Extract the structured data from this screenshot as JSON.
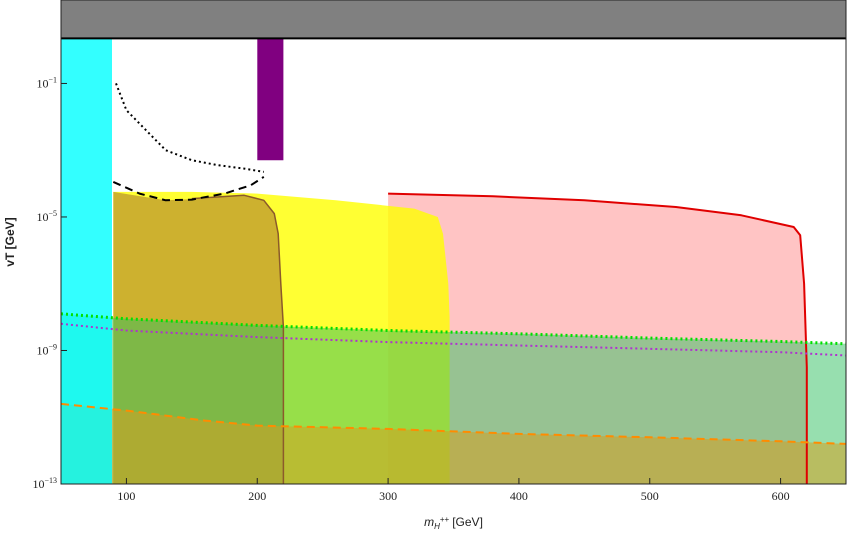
{
  "chart_data": {
    "type": "area",
    "title": "",
    "xlabel": {
      "main": "m",
      "sub": "H",
      "sup": "++",
      "unit": "[GeV]"
    },
    "ylabel": "vT  [GeV]",
    "x_scale": "linear",
    "y_scale": "log",
    "xlim": [
      50,
      650
    ],
    "ylim_exp10": [
      -13,
      1.5
    ],
    "x_ticks": [
      100,
      200,
      300,
      400,
      500,
      600
    ],
    "x_tick_labels": [
      "100",
      "200",
      "300",
      "400",
      "500",
      "600"
    ],
    "y_ticks_exp10": [
      -13,
      -9,
      -5,
      -1
    ],
    "y_tick_labels": [
      {
        "base": "10",
        "exp": "−13"
      },
      {
        "base": "10",
        "exp": "−9"
      },
      {
        "base": "10",
        "exp": "−5"
      },
      {
        "base": "10",
        "exp": "−1"
      }
    ],
    "grid": false,
    "legend": "none",
    "regions": [
      {
        "id": "top-excluded-band",
        "color": "#808080",
        "opacity": 1,
        "points": [
          [
            50,
            0.35
          ],
          [
            650,
            0.35
          ],
          [
            650,
            1.5
          ],
          [
            50,
            1.5
          ]
        ]
      },
      {
        "id": "pink-region",
        "color": "#ffb0b0",
        "opacity": 0.75,
        "points": [
          [
            300,
            -13
          ],
          [
            300,
            -4.3
          ],
          [
            380,
            -4.38
          ],
          [
            450,
            -4.5
          ],
          [
            520,
            -4.7
          ],
          [
            570,
            -4.95
          ],
          [
            610,
            -5.3
          ],
          [
            615,
            -5.55
          ],
          [
            618,
            -7
          ],
          [
            620,
            -9.5
          ],
          [
            620,
            -13
          ]
        ]
      },
      {
        "id": "yellow-region",
        "color": "#ffff00",
        "opacity": 0.8,
        "points": [
          [
            90,
            -13
          ],
          [
            90,
            -4.25
          ],
          [
            150,
            -4.25
          ],
          [
            200,
            -4.3
          ],
          [
            260,
            -4.5
          ],
          [
            320,
            -4.75
          ],
          [
            338,
            -5
          ],
          [
            342,
            -5.5
          ],
          [
            346,
            -7
          ],
          [
            347,
            -8
          ],
          [
            347,
            -13
          ]
        ]
      },
      {
        "id": "brown-region",
        "color": "#b8902e",
        "opacity": 0.7,
        "points": [
          [
            90,
            -13
          ],
          [
            90,
            -4.25
          ],
          [
            130,
            -4.5
          ],
          [
            160,
            -4.45
          ],
          [
            190,
            -4.35
          ],
          [
            205,
            -4.5
          ],
          [
            213,
            -4.9
          ],
          [
            216,
            -5.5
          ],
          [
            218,
            -7
          ],
          [
            220,
            -8.3
          ],
          [
            220,
            -13
          ]
        ]
      },
      {
        "id": "green-region",
        "color": "#30c060",
        "opacity": 0.5,
        "points": [
          [
            50,
            -13
          ],
          [
            50,
            -7.9
          ],
          [
            100,
            -8.05
          ],
          [
            150,
            -8.15
          ],
          [
            200,
            -8.25
          ],
          [
            300,
            -8.4
          ],
          [
            400,
            -8.5
          ],
          [
            500,
            -8.63
          ],
          [
            600,
            -8.73
          ],
          [
            650,
            -8.8
          ],
          [
            650,
            -13
          ]
        ]
      },
      {
        "id": "orange-region",
        "color": "#d4a020",
        "opacity": 0.55,
        "points": [
          [
            50,
            -13
          ],
          [
            50,
            -10.6
          ],
          [
            100,
            -10.8
          ],
          [
            160,
            -11.1
          ],
          [
            200,
            -11.25
          ],
          [
            300,
            -11.35
          ],
          [
            400,
            -11.5
          ],
          [
            500,
            -11.6
          ],
          [
            600,
            -11.72
          ],
          [
            650,
            -11.8
          ],
          [
            650,
            -13
          ]
        ]
      },
      {
        "id": "purple-band",
        "color": "#800080",
        "opacity": 1,
        "points": [
          [
            200,
            -3.3
          ],
          [
            220,
            -3.3
          ],
          [
            220,
            0.35
          ],
          [
            200,
            0.35
          ]
        ]
      },
      {
        "id": "cyan-band",
        "color": "#00ffff",
        "opacity": 0.8,
        "points": [
          [
            50,
            -13
          ],
          [
            89,
            -13
          ],
          [
            89,
            0.35
          ],
          [
            50,
            0.35
          ]
        ]
      }
    ],
    "curves": [
      {
        "id": "red-boundary",
        "color": "#e00000",
        "dash": "solid",
        "width": 2,
        "points": [
          [
            300,
            -4.3
          ],
          [
            380,
            -4.38
          ],
          [
            450,
            -4.5
          ],
          [
            520,
            -4.7
          ],
          [
            570,
            -4.95
          ],
          [
            610,
            -5.3
          ],
          [
            615,
            -5.55
          ],
          [
            618,
            -7
          ],
          [
            620,
            -9.5
          ],
          [
            620,
            -13
          ]
        ]
      },
      {
        "id": "brown-boundary",
        "color": "#8b5a2b",
        "dash": "solid",
        "width": 1.5,
        "points": [
          [
            150,
            -4.45
          ],
          [
            190,
            -4.35
          ],
          [
            205,
            -4.5
          ],
          [
            213,
            -4.9
          ],
          [
            216,
            -5.5
          ],
          [
            218,
            -7
          ],
          [
            220,
            -8.3
          ],
          [
            220,
            -13
          ]
        ]
      },
      {
        "id": "green-dotted",
        "color": "#00e000",
        "dash": "dotted",
        "width": 3,
        "points": [
          [
            50,
            -7.9
          ],
          [
            100,
            -8.05
          ],
          [
            150,
            -8.15
          ],
          [
            200,
            -8.25
          ],
          [
            300,
            -8.4
          ],
          [
            400,
            -8.5
          ],
          [
            500,
            -8.63
          ],
          [
            600,
            -8.73
          ],
          [
            650,
            -8.8
          ]
        ]
      },
      {
        "id": "magenta-dotted",
        "color": "#b030d0",
        "dash": "dotted",
        "width": 2,
        "points": [
          [
            50,
            -8.2
          ],
          [
            100,
            -8.4
          ],
          [
            150,
            -8.5
          ],
          [
            200,
            -8.6
          ],
          [
            300,
            -8.75
          ],
          [
            400,
            -8.85
          ],
          [
            500,
            -8.95
          ],
          [
            600,
            -9.05
          ],
          [
            650,
            -9.15
          ]
        ]
      },
      {
        "id": "orange-dashed",
        "color": "#ff8c00",
        "dash": "dashed",
        "width": 2,
        "points": [
          [
            50,
            -10.6
          ],
          [
            100,
            -10.8
          ],
          [
            160,
            -11.1
          ],
          [
            200,
            -11.25
          ],
          [
            300,
            -11.35
          ],
          [
            400,
            -11.5
          ],
          [
            500,
            -11.6
          ],
          [
            600,
            -11.72
          ],
          [
            650,
            -11.8
          ]
        ]
      },
      {
        "id": "black-dotted",
        "color": "#000000",
        "dash": "dotted",
        "width": 2,
        "points": [
          [
            92,
            -1.0
          ],
          [
            100,
            -1.8
          ],
          [
            115,
            -2.4
          ],
          [
            130,
            -3.0
          ],
          [
            150,
            -3.3
          ],
          [
            170,
            -3.45
          ],
          [
            190,
            -3.55
          ],
          [
            205,
            -3.65
          ]
        ]
      },
      {
        "id": "black-dashed",
        "color": "#000000",
        "dash": "dashed",
        "width": 2,
        "points": [
          [
            90,
            -3.95
          ],
          [
            110,
            -4.3
          ],
          [
            130,
            -4.5
          ],
          [
            150,
            -4.48
          ],
          [
            175,
            -4.3
          ],
          [
            195,
            -4.05
          ],
          [
            205,
            -3.8
          ]
        ]
      },
      {
        "id": "top-band-edge",
        "color": "#000000",
        "dash": "solid",
        "width": 2,
        "points": [
          [
            50,
            0.35
          ],
          [
            650,
            0.35
          ]
        ]
      }
    ]
  }
}
